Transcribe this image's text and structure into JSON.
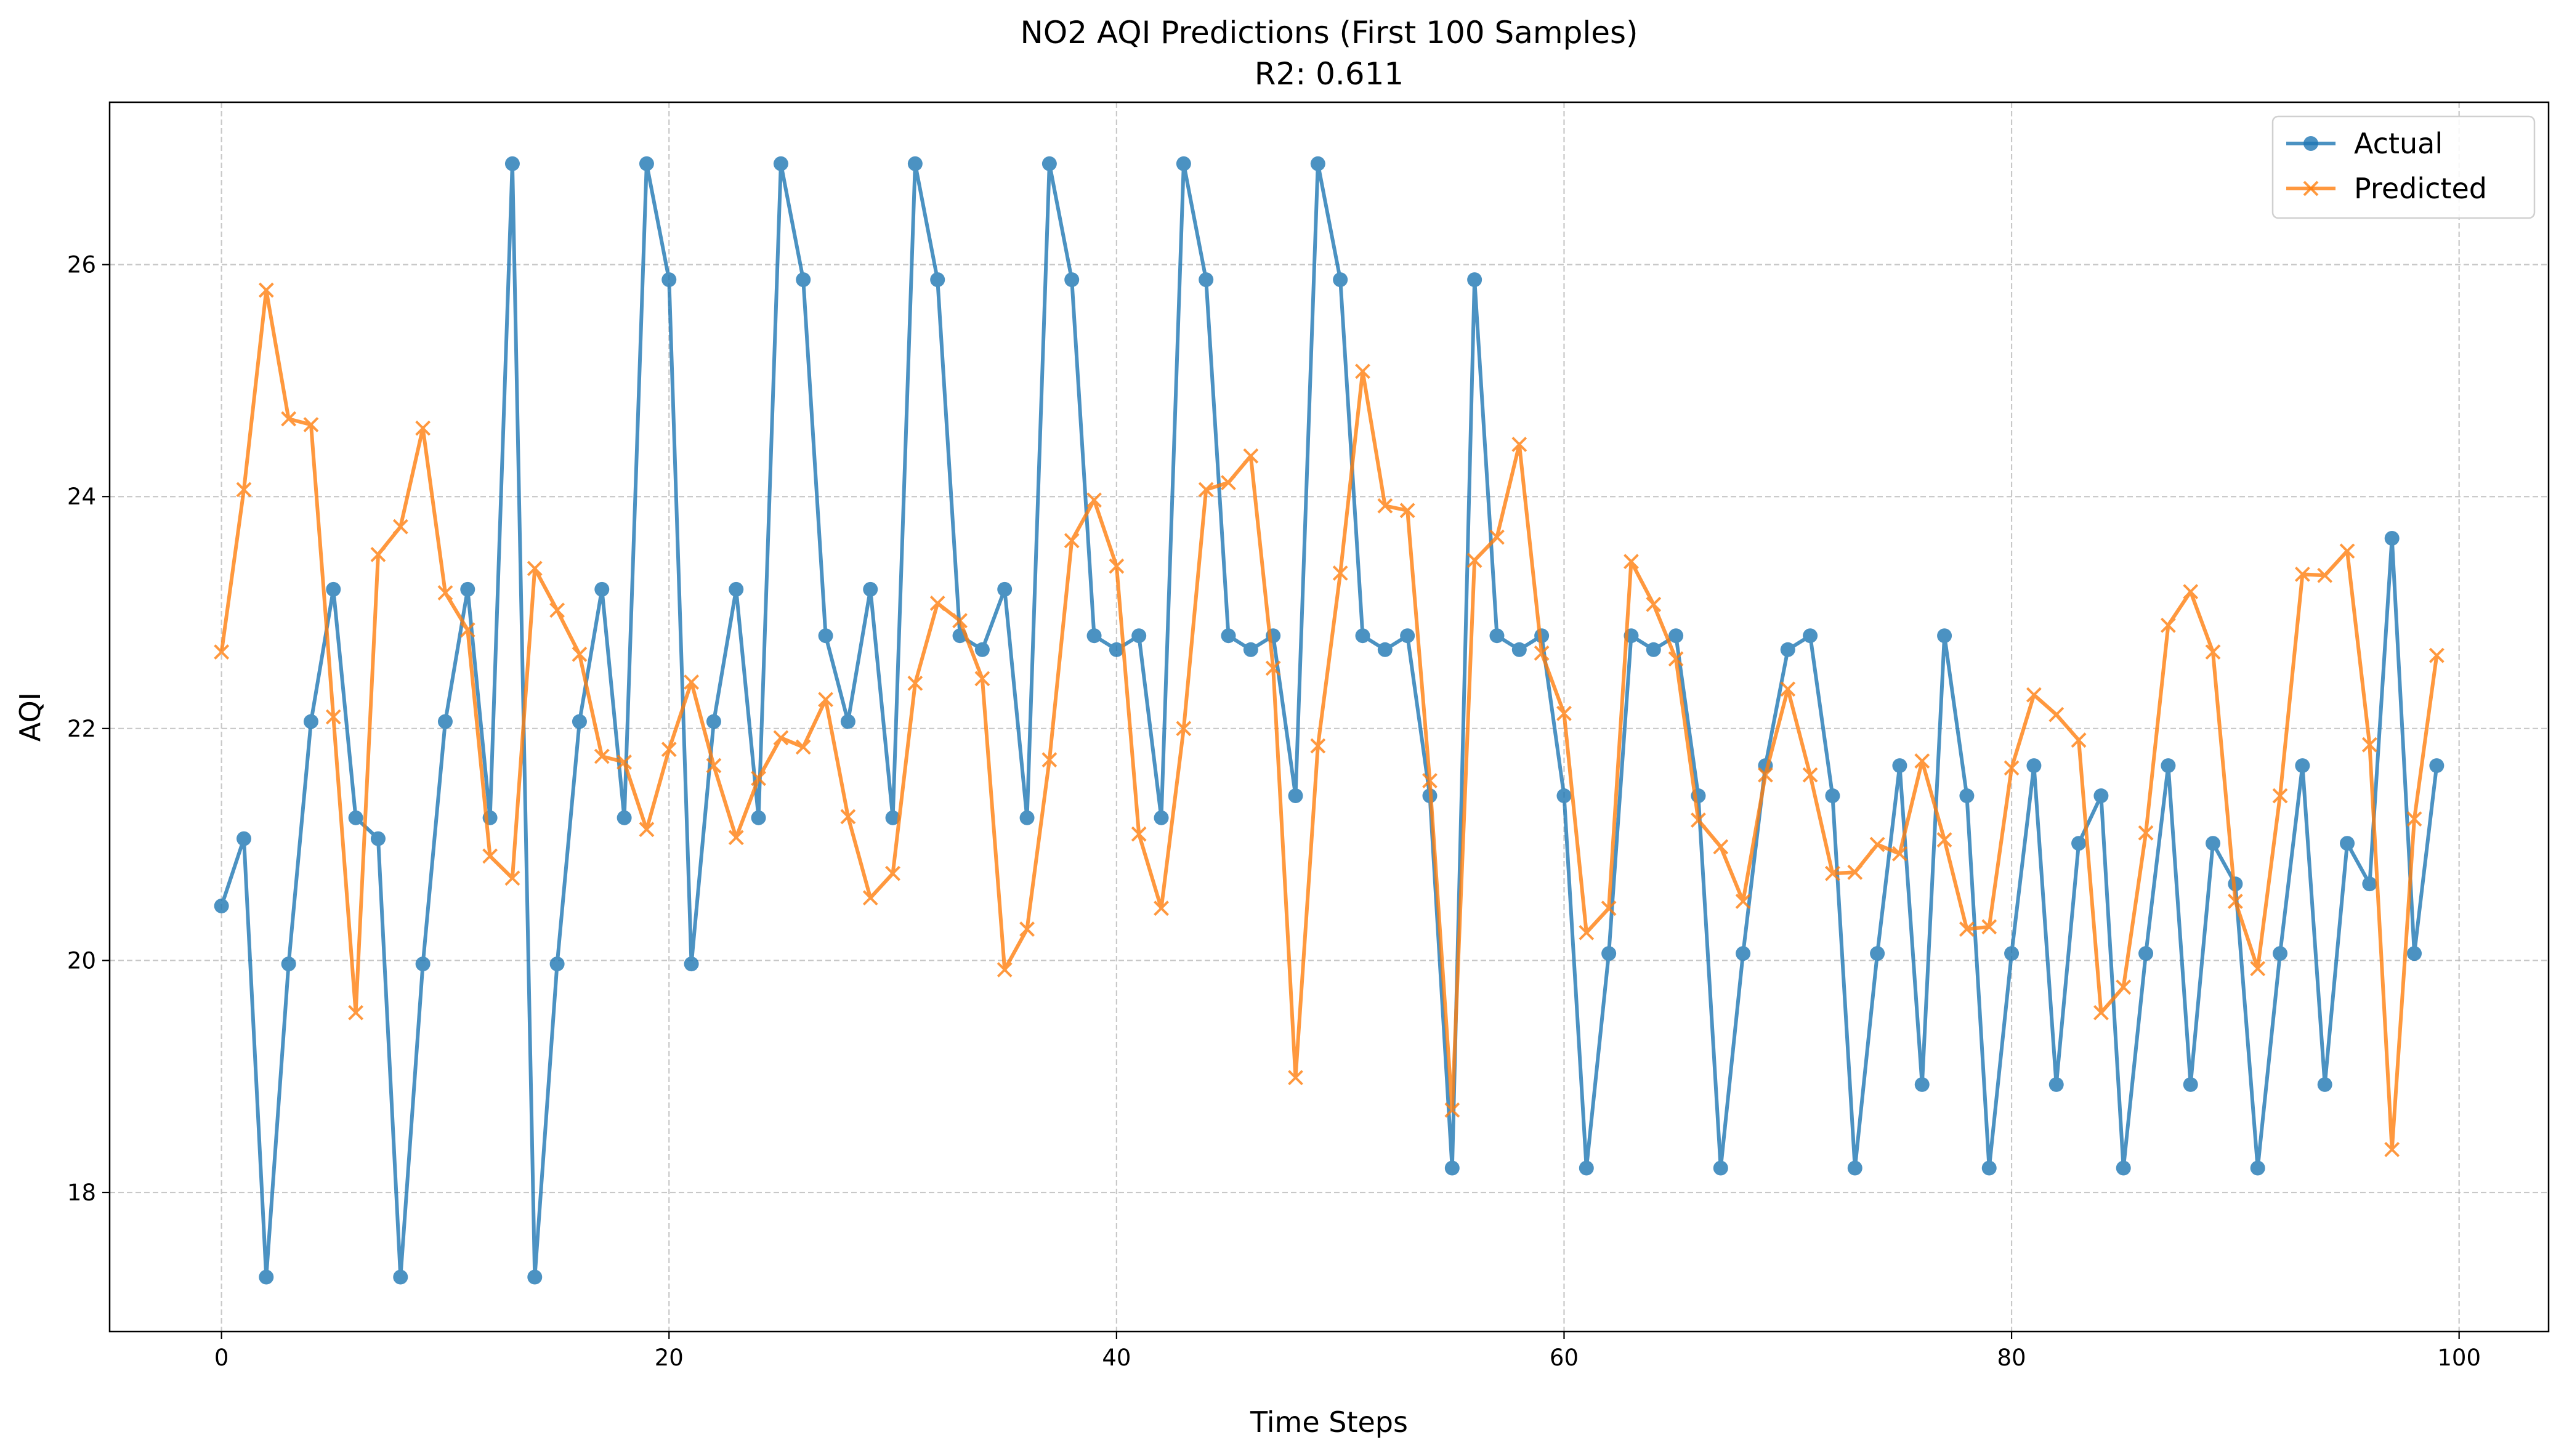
{
  "chart_data": {
    "type": "line",
    "title": "NO2 AQI Predictions (First 100 Samples)",
    "subtitle": "R2: 0.611",
    "xlabel": "Time Steps",
    "ylabel": "AQI",
    "xlim": [
      -5,
      104
    ],
    "ylim": [
      16.8,
      27.4
    ],
    "xticks": [
      0,
      20,
      40,
      60,
      80,
      100
    ],
    "yticks": [
      18,
      20,
      22,
      24,
      26
    ],
    "grid": true,
    "legend_position": "top-right",
    "series": [
      {
        "name": "Actual",
        "color": "#1f77b4",
        "marker": "circle",
        "values": [
          20.47,
          21.05,
          17.27,
          19.97,
          22.06,
          23.2,
          21.23,
          21.05,
          17.27,
          19.97,
          22.06,
          23.2,
          21.23,
          26.87,
          17.27,
          19.97,
          22.06,
          23.2,
          21.23,
          26.87,
          25.87,
          19.97,
          22.06,
          23.2,
          21.23,
          26.87,
          25.87,
          22.8,
          22.06,
          23.2,
          21.23,
          26.87,
          25.87,
          22.8,
          22.68,
          23.2,
          21.23,
          26.87,
          25.87,
          22.8,
          22.68,
          22.8,
          21.23,
          26.87,
          25.87,
          22.8,
          22.68,
          22.8,
          21.42,
          26.87,
          25.87,
          22.8,
          22.68,
          22.8,
          21.42,
          18.21,
          25.87,
          22.8,
          22.68,
          22.8,
          21.42,
          18.21,
          20.06,
          22.8,
          22.68,
          22.8,
          21.42,
          18.21,
          20.06,
          21.68,
          22.68,
          22.8,
          21.42,
          18.21,
          20.06,
          21.68,
          18.93,
          22.8,
          21.42,
          18.21,
          20.06,
          21.68,
          18.93,
          21.01,
          21.42,
          18.21,
          20.06,
          21.68,
          18.93,
          21.01,
          20.66,
          18.21,
          20.06,
          21.68,
          18.93,
          21.01,
          20.66,
          23.64,
          20.06,
          21.68
        ]
      },
      {
        "name": "Predicted",
        "color": "#ff7f0e",
        "marker": "x",
        "values": [
          22.66,
          24.06,
          25.78,
          24.67,
          24.62,
          22.1,
          19.55,
          23.5,
          23.74,
          24.59,
          23.17,
          22.85,
          20.9,
          20.71,
          23.38,
          23.02,
          22.64,
          21.76,
          21.71,
          21.13,
          21.82,
          22.4,
          21.68,
          21.06,
          21.57,
          21.92,
          21.84,
          22.25,
          21.24,
          20.54,
          20.75,
          22.39,
          23.08,
          22.93,
          22.43,
          19.92,
          20.27,
          21.73,
          23.62,
          23.97,
          23.4,
          21.09,
          20.45,
          22.0,
          24.06,
          24.12,
          24.35,
          22.52,
          18.99,
          21.85,
          23.34,
          25.08,
          23.92,
          23.88,
          21.55,
          18.71,
          23.45,
          23.65,
          24.45,
          22.65,
          22.13,
          20.24,
          20.45,
          23.44,
          23.07,
          22.6,
          21.21,
          20.98,
          20.51,
          21.6,
          22.34,
          21.6,
          20.75,
          20.76,
          21.0,
          20.92,
          21.72,
          21.04,
          20.27,
          20.29,
          21.66,
          22.29,
          22.12,
          21.9,
          19.55,
          19.77,
          21.1,
          22.89,
          23.18,
          22.66,
          20.51,
          19.93,
          21.42,
          23.33,
          23.32,
          23.53,
          21.86,
          18.37,
          21.22,
          22.63
        ]
      }
    ]
  }
}
